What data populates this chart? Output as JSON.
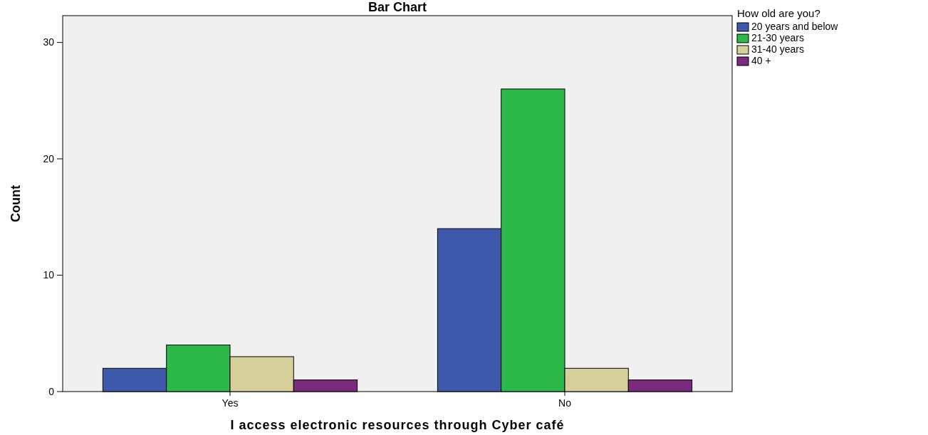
{
  "chart_data": {
    "type": "bar",
    "title": "Bar Chart",
    "xlabel": "I access electronic resources through Cyber café",
    "ylabel": "Count",
    "legend_title": "How old are you?",
    "categories": [
      "Yes",
      "No"
    ],
    "series": [
      {
        "name": "20 years and below",
        "color": "#3e58ac",
        "values": [
          2,
          14
        ]
      },
      {
        "name": "21-30 years",
        "color": "#2db84a",
        "values": [
          4,
          26
        ]
      },
      {
        "name": "31-40 years",
        "color": "#d6cf9a",
        "values": [
          3,
          2
        ]
      },
      {
        "name": "40 +",
        "color": "#7b2a7d",
        "values": [
          1,
          1
        ]
      }
    ],
    "ylim": [
      0,
      32.3
    ],
    "yticks": [
      0,
      10,
      20,
      30
    ],
    "grid": false,
    "legend": "top right"
  }
}
